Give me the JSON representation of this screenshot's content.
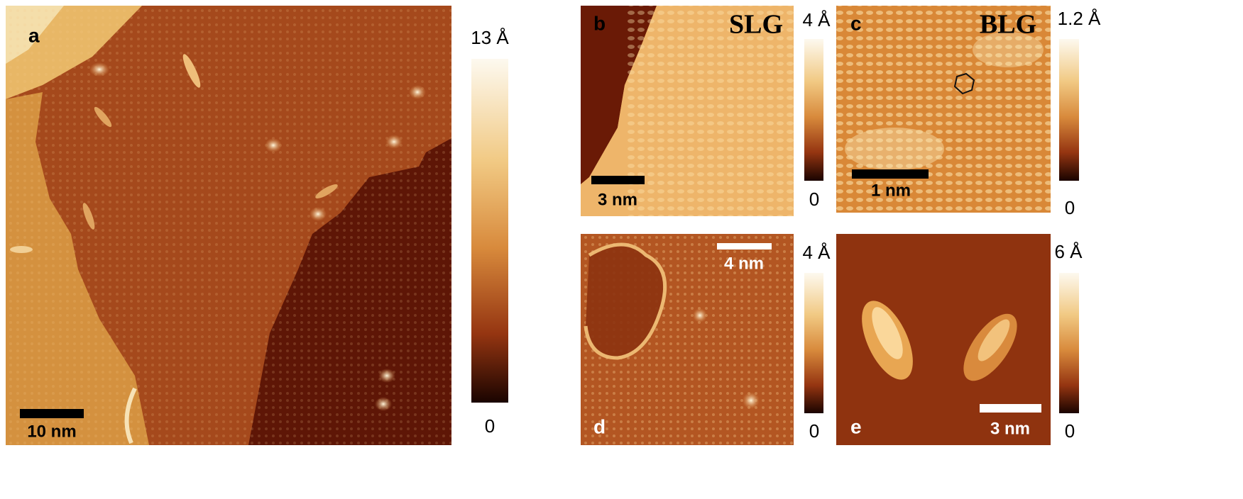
{
  "panels": [
    {
      "label": "a",
      "colorbar": {
        "max": "13 Å",
        "min": "0"
      },
      "scale_bar": "10 nm"
    },
    {
      "label": "b",
      "colorbar": {
        "max": "4 Å",
        "min": "0"
      },
      "scale_bar": "3 nm",
      "tag": "SLG"
    },
    {
      "label": "c",
      "colorbar": {
        "max": "1.2 Å",
        "min": "0"
      },
      "scale_bar": "1 nm",
      "tag": "BLG"
    },
    {
      "label": "d",
      "colorbar": {
        "max": "4 Å",
        "min": "0"
      },
      "scale_bar": "4 nm"
    },
    {
      "label": "e",
      "colorbar": {
        "max": "6 Å",
        "min": "0"
      },
      "scale_bar": "3 nm"
    }
  ]
}
